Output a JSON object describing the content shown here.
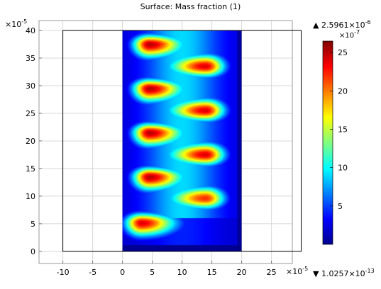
{
  "title": "Surface: Mass fraction (1)",
  "colors": {
    "domain_edge": "#000000",
    "grid": "#d8d8d8",
    "frame": "#9a9a9a",
    "colormap": "jet"
  },
  "chart_data": {
    "type": "heatmap",
    "title": "Surface: Mass fraction (1)",
    "xlabel": "",
    "ylabel": "",
    "x_multiplier": "×10",
    "x_multiplier_exp": "-5",
    "y_multiplier": "×10",
    "y_multiplier_exp": "-5",
    "xlim": [
      -14,
      28.5
    ],
    "ylim": [
      -2.2,
      41.8
    ],
    "x_ticks": [
      -10,
      -5,
      0,
      5,
      10,
      15,
      20,
      25
    ],
    "y_ticks": [
      0,
      5,
      10,
      15,
      20,
      25,
      30,
      35,
      40
    ],
    "grid": true,
    "geometry_domain": {
      "x": [
        -10,
        30
      ],
      "y": [
        0,
        40
      ]
    },
    "colored_region": {
      "x": [
        0,
        20
      ],
      "y": [
        0,
        40
      ]
    },
    "hotspots": [
      {
        "x": 3.2,
        "y": 5.2,
        "peak": 24
      },
      {
        "x": 4.5,
        "y": 13.5,
        "peak": 25
      },
      {
        "x": 14.0,
        "y": 9.6,
        "peak": 22
      },
      {
        "x": 4.5,
        "y": 21.5,
        "peak": 25
      },
      {
        "x": 14.0,
        "y": 17.5,
        "peak": 24
      },
      {
        "x": 4.5,
        "y": 29.5,
        "peak": 25
      },
      {
        "x": 14.0,
        "y": 25.5,
        "peak": 24
      },
      {
        "x": 4.5,
        "y": 37.5,
        "peak": 25
      },
      {
        "x": 14.0,
        "y": 33.5,
        "peak": 24
      }
    ],
    "colorbar": {
      "multiplier": "×10",
      "multiplier_exp": "-7",
      "ticks": [
        5,
        10,
        15,
        20,
        25
      ],
      "range": [
        0,
        26.5
      ],
      "max_label": "▲ 2.5961×10",
      "max_exp": "-6",
      "min_label": "▼ 1.0257×10",
      "min_exp": "-13"
    }
  }
}
